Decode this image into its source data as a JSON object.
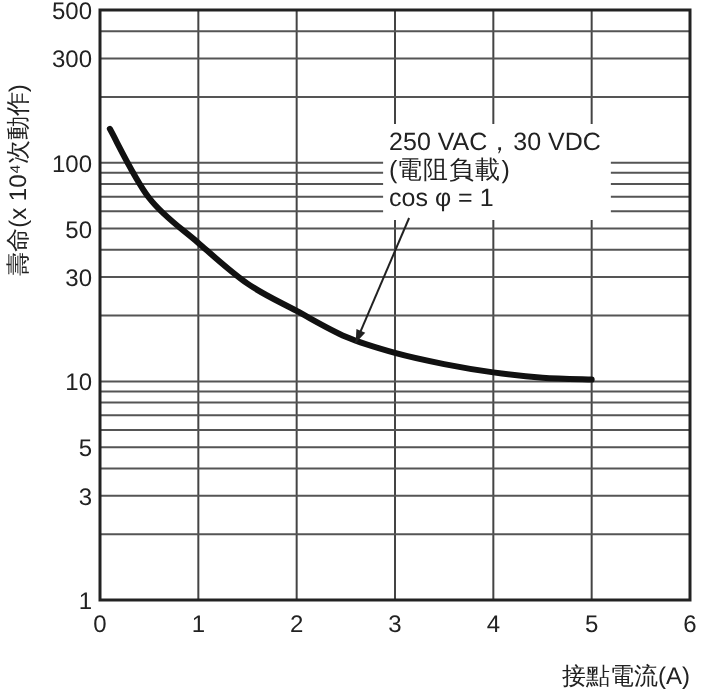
{
  "chart_data": {
    "type": "line",
    "x": [
      0.1,
      0.5,
      1,
      1.5,
      2,
      2.5,
      3,
      3.5,
      4,
      4.5,
      5
    ],
    "series": [
      {
        "color": "#111111",
        "values": [
          143,
          69,
          43,
          28,
          21,
          16,
          13.5,
          12,
          11,
          10.4,
          10.2
        ]
      }
    ],
    "xlim": [
      0,
      6
    ],
    "xticks": [
      0,
      1,
      2,
      3,
      4,
      5,
      6
    ],
    "ylim": [
      1,
      500
    ],
    "log": true,
    "yticks": [
      1,
      {
        "value": 2,
        "label": null
      },
      3,
      {
        "value": 4,
        "label": null
      },
      5,
      {
        "value": 6,
        "label": null
      },
      {
        "value": 7,
        "label": null
      },
      {
        "value": 8,
        "label": null
      },
      {
        "value": 9,
        "label": null
      },
      10,
      {
        "value": 20,
        "label": null
      },
      30,
      {
        "value": 40,
        "label": null
      },
      50,
      {
        "value": 60,
        "label": null
      },
      {
        "value": 70,
        "label": null
      },
      {
        "value": 80,
        "label": null
      },
      {
        "value": 90,
        "label": null
      },
      100,
      {
        "value": 200,
        "label": null
      },
      300,
      {
        "value": 400,
        "label": null
      },
      500
    ],
    "grid": true,
    "xlabel": "接點電流(A)",
    "ylabel": "壽命(x 10⁴次動作)",
    "annotations": [
      {
        "text": "250 VAC，30 VDC\n(電阻負載)\ncos φ = 1",
        "x": 2.6,
        "y": 15
      }
    ]
  }
}
